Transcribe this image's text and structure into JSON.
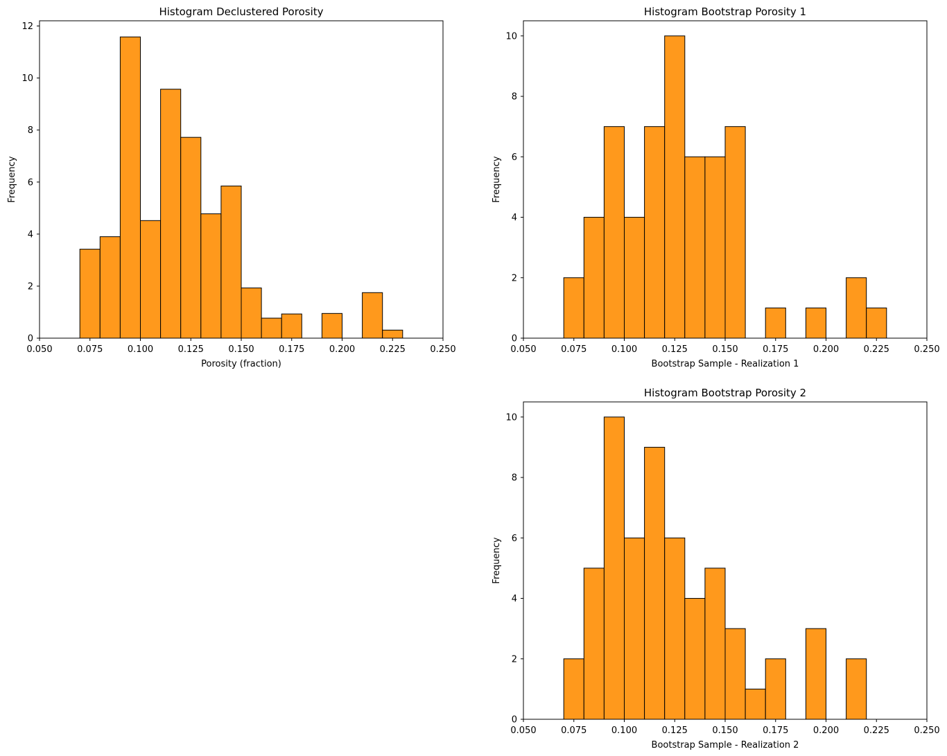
{
  "colors": {
    "bar_fill": "#ff991c",
    "bar_edge": "#000000",
    "axis": "#000000",
    "background": "#ffffff"
  },
  "chart_data": [
    {
      "type": "bar",
      "title": "Histogram Declustered Porosity",
      "xlabel": "Porosity (fraction)",
      "ylabel": "Frequency",
      "xlim": [
        0.05,
        0.25
      ],
      "ylim": [
        0,
        12.2
      ],
      "xticks": [
        "0.050",
        "0.075",
        "0.100",
        "0.125",
        "0.150",
        "0.175",
        "0.200",
        "0.225",
        "0.250"
      ],
      "yticks": [
        "0",
        "2",
        "4",
        "6",
        "8",
        "10",
        "12"
      ],
      "bin_edges": [
        0.07,
        0.08,
        0.09,
        0.1,
        0.11,
        0.12,
        0.13,
        0.14,
        0.15,
        0.16,
        0.17,
        0.18,
        0.19,
        0.2,
        0.21,
        0.22,
        0.23
      ],
      "values": [
        3.42,
        3.9,
        11.58,
        4.52,
        9.57,
        7.72,
        4.78,
        5.85,
        1.93,
        0.77,
        0.93,
        0,
        0.95,
        0,
        1.75,
        0.31
      ]
    },
    {
      "type": "bar",
      "title": "Histogram Bootstrap Porosity 1",
      "xlabel": "Bootstrap Sample - Realization 1",
      "ylabel": "Frequency",
      "xlim": [
        0.05,
        0.25
      ],
      "ylim": [
        0,
        10.5
      ],
      "xticks": [
        "0.050",
        "0.075",
        "0.100",
        "0.125",
        "0.150",
        "0.175",
        "0.200",
        "0.225",
        "0.250"
      ],
      "yticks": [
        "0",
        "2",
        "4",
        "6",
        "8",
        "10"
      ],
      "bin_edges": [
        0.07,
        0.08,
        0.09,
        0.1,
        0.11,
        0.12,
        0.13,
        0.14,
        0.15,
        0.16,
        0.17,
        0.18,
        0.19,
        0.2,
        0.21,
        0.22,
        0.23
      ],
      "values": [
        2,
        4,
        7,
        4,
        7,
        10,
        6,
        6,
        7,
        0,
        1,
        0,
        1,
        0,
        2,
        1
      ]
    },
    {
      "type": "bar",
      "title": "Histogram Bootstrap Porosity 2",
      "xlabel": "Bootstrap Sample - Realization 2",
      "ylabel": "Frequency",
      "xlim": [
        0.05,
        0.25
      ],
      "ylim": [
        0,
        10.5
      ],
      "xticks": [
        "0.050",
        "0.075",
        "0.100",
        "0.125",
        "0.150",
        "0.175",
        "0.200",
        "0.225",
        "0.250"
      ],
      "yticks": [
        "0",
        "2",
        "4",
        "6",
        "8",
        "10"
      ],
      "bin_edges": [
        0.07,
        0.08,
        0.09,
        0.1,
        0.11,
        0.12,
        0.13,
        0.14,
        0.15,
        0.16,
        0.17,
        0.18,
        0.19,
        0.2,
        0.21,
        0.22
      ],
      "values": [
        2,
        5,
        10,
        6,
        9,
        6,
        4,
        5,
        3,
        1,
        2,
        0,
        3,
        0,
        2
      ]
    }
  ]
}
